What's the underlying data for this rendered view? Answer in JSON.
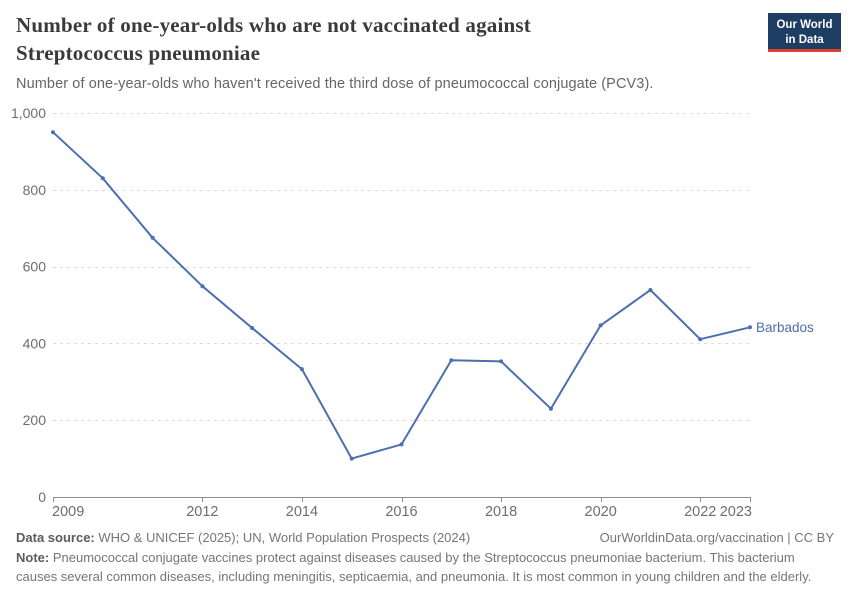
{
  "header": {
    "title": "Number of one-year-olds who are not vaccinated against Streptococcus pneumoniae",
    "subtitle": "Number of one-year-olds who haven't received the third dose of pneumococcal conjugate (PCV3)."
  },
  "logo": {
    "line1": "Our World",
    "line2": "in Data",
    "bg_color": "#1d3d63",
    "accent_color": "#dc3e32"
  },
  "chart_data": {
    "type": "line",
    "title": "Number of one-year-olds who are not vaccinated against Streptococcus pneumoniae",
    "subtitle": "Number of one-year-olds who haven't received the third dose of pneumococcal conjugate (PCV3).",
    "x": [
      2009,
      2010,
      2011,
      2012,
      2013,
      2014,
      2015,
      2016,
      2017,
      2018,
      2019,
      2020,
      2021,
      2022,
      2023
    ],
    "series": [
      {
        "name": "Barbados",
        "color": "#4C6FAD",
        "values": [
          950,
          830,
          675,
          549,
          440,
          333,
          100,
          137,
          356,
          353,
          230,
          447,
          539,
          411,
          442
        ]
      }
    ],
    "xlabel": "",
    "ylabel": "",
    "ylim": [
      0,
      1000
    ],
    "yticks": [
      0,
      200,
      400,
      600,
      800,
      1000
    ],
    "xticks": [
      2009,
      2012,
      2014,
      2016,
      2018,
      2020,
      2022,
      2023
    ],
    "grid": "horizontal-dashed",
    "grid_color": "#dcdcdc",
    "axis_color": "#8f8f8f",
    "tick_label_color": "#6e6e6e",
    "legend_position": "end-of-line-label"
  },
  "footer": {
    "data_source_label": "Data source:",
    "data_source": " WHO & UNICEF (2025); UN, World Population Prospects (2024)",
    "link": "OurWorldinData.org/vaccination | CC BY",
    "note_label": "Note:",
    "note": " Pneumococcal conjugate vaccines protect against diseases caused by the Streptococcus pneumoniae bacterium. This bacterium causes several common diseases, including meningitis, septicaemia, and pneumonia. It is most common in young children and the elderly."
  }
}
